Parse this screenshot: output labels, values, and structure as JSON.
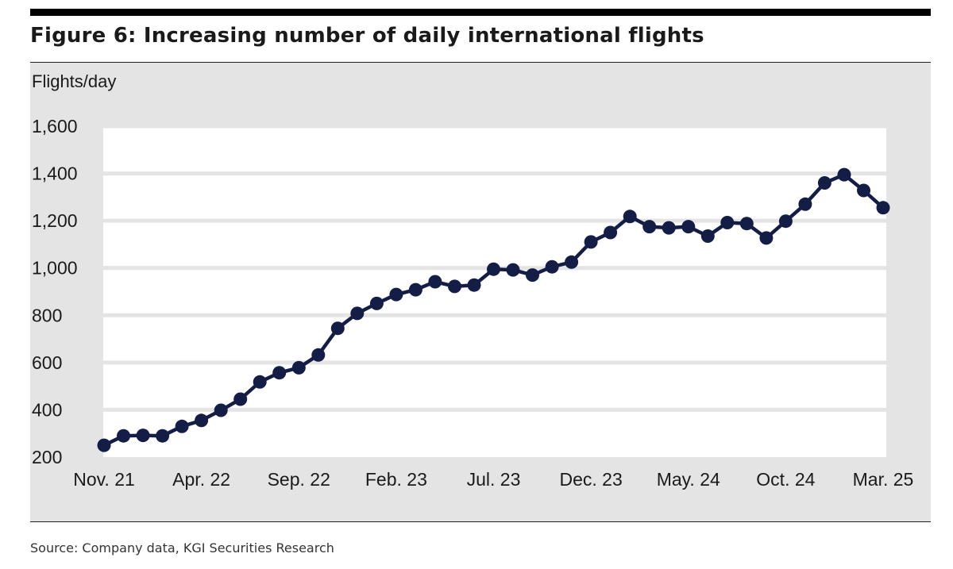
{
  "figure": {
    "title": "Figure 6: Increasing number of daily international flights",
    "source": "Source: Company data, KGI Securities Research"
  },
  "chart_data": {
    "type": "line",
    "title": "Figure 6: Increasing number of daily international flights",
    "ylabel": "Flights/day",
    "xlabel": "",
    "ylim": [
      200,
      1600
    ],
    "yticks": [
      200,
      400,
      600,
      800,
      1000,
      1200,
      1400,
      1600
    ],
    "ytick_labels": [
      "200",
      "400",
      "600",
      "800",
      "1,000",
      "1,200",
      "1,400",
      "1,600"
    ],
    "xtick_labels": [
      "Nov. 21",
      "Apr. 22",
      "Sep. 22",
      "Feb. 23",
      "Jul. 23",
      "Dec. 23",
      "May. 24",
      "Oct. 24",
      "Mar. 25"
    ],
    "xtick_indices": [
      0,
      5,
      10,
      15,
      20,
      25,
      30,
      35,
      40
    ],
    "grid": true,
    "line_color": "#141d45",
    "series": [
      {
        "name": "Daily international flights",
        "values": [
          250,
          290,
          292,
          290,
          330,
          355,
          398,
          445,
          518,
          557,
          578,
          632,
          745,
          808,
          850,
          888,
          908,
          942,
          922,
          928,
          995,
          992,
          970,
          1005,
          1025,
          1110,
          1150,
          1218,
          1175,
          1170,
          1175,
          1135,
          1192,
          1188,
          1127,
          1198,
          1270,
          1360,
          1395,
          1328,
          1255
        ]
      }
    ]
  }
}
